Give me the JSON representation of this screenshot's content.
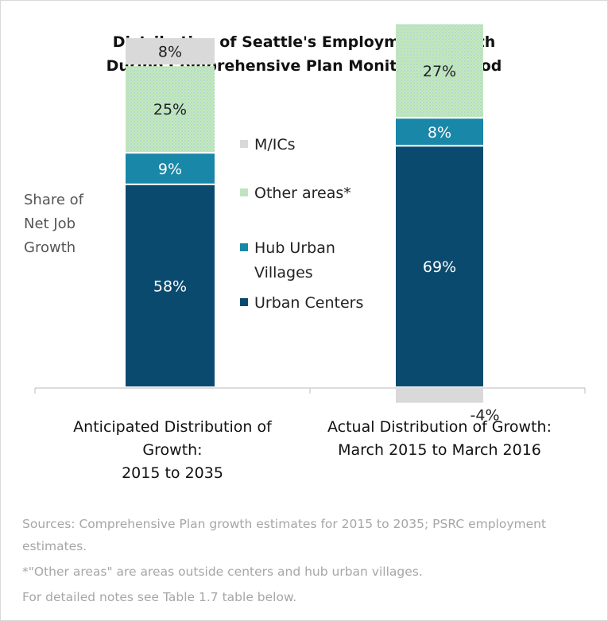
{
  "chart_data": {
    "type": "bar",
    "stacked": true,
    "title": "Distribution of Seattle's Employment Growth",
    "subtitle": "During Comprehensive Plan Monitoring Period",
    "ylabel": [
      "Share of",
      "Net Job",
      "Growth"
    ],
    "categories": [
      [
        "Anticipated Distribution of",
        "Growth:",
        "2015 to 2035"
      ],
      [
        "Actual Distribution of Growth:",
        "March 2015 to March 2016"
      ]
    ],
    "series": [
      {
        "name": "Urban Centers",
        "values": [
          58,
          69
        ],
        "labels": [
          "58%",
          "69%"
        ],
        "color": "#0b4a6f"
      },
      {
        "name": "Hub Urban Villages",
        "values": [
          9,
          8
        ],
        "labels": [
          "9%",
          "8%"
        ],
        "color": "#1887a8"
      },
      {
        "name": "Other areas*",
        "values": [
          25,
          27
        ],
        "labels": [
          "25%",
          "27%"
        ],
        "color": "#c6e9b8"
      },
      {
        "name": "M/ICs",
        "values": [
          8,
          -4
        ],
        "labels": [
          "8%",
          "-4%"
        ],
        "color": "#d9d9d9"
      }
    ],
    "legend": [
      "M/ICs",
      "Other areas*",
      "Hub Urban Villages",
      "Urban Centers"
    ],
    "legend_position": "center",
    "ylim": [
      -4,
      100
    ],
    "grid": false
  },
  "notes": {
    "sources": "Sources: Comprehensive Plan growth estimates for 2015 to 2035; PSRC employment estimates.",
    "other_areas": "*\"Other areas\" are areas outside centers and hub urban villages.",
    "detailed": "For detailed notes see Table 1.7 table below."
  }
}
